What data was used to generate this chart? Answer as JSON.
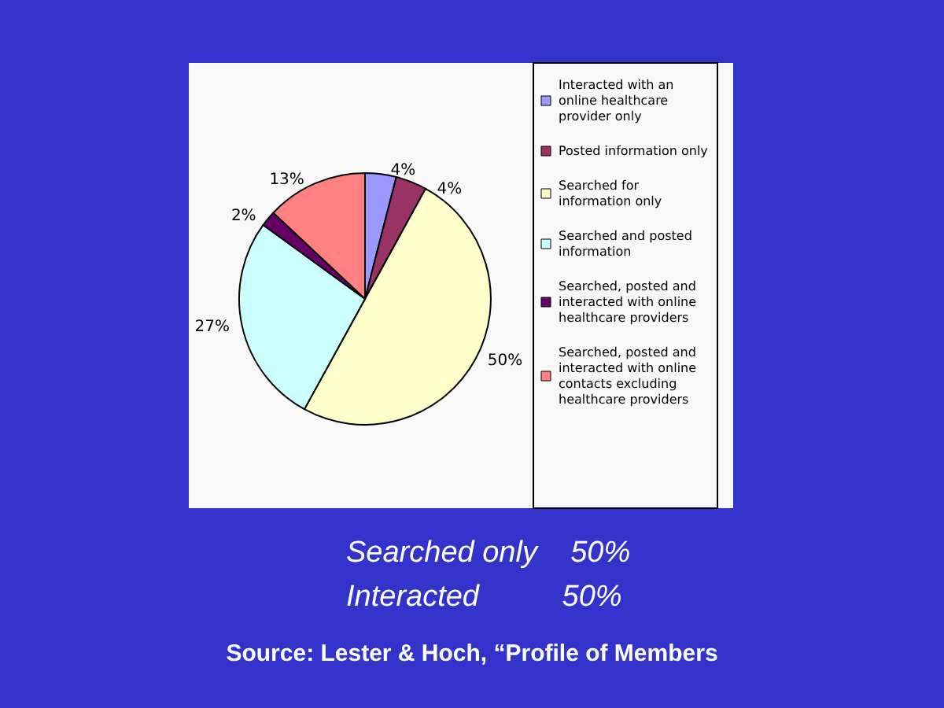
{
  "chart_data": {
    "type": "pie",
    "categories": [
      "Interacted with an online healthcare provider only",
      "Posted information only",
      "Searched for information only",
      "Searched and posted information",
      "Searched, posted and interacted with online healthcare providers",
      "Searched, posted and interacted with online contacts excluding healthcare providers"
    ],
    "values": [
      4,
      4,
      50,
      27,
      2,
      13
    ],
    "colors": [
      "#9999ff",
      "#993366",
      "#ffffcc",
      "#ccffff",
      "#660066",
      "#ff8080"
    ],
    "value_labels": [
      "4%",
      "4%",
      "50%",
      "27%",
      "2%",
      "13%"
    ],
    "legend": "right",
    "annotations": [
      "Searched only    50%",
      "Interacted          50%",
      "Source: Lester & Hoch, “Profile of Members"
    ]
  }
}
